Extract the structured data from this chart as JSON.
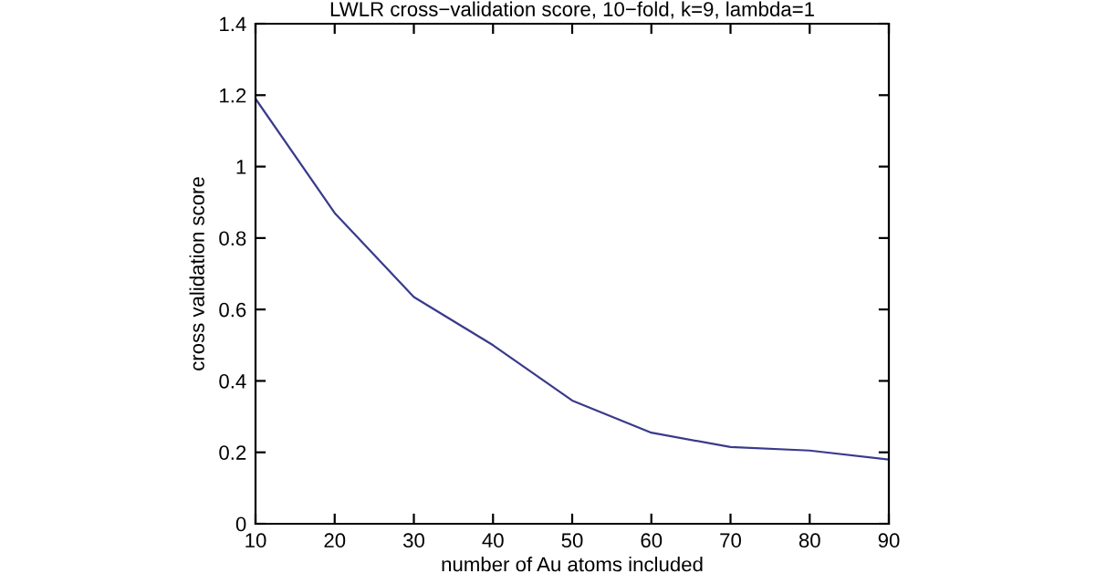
{
  "chart_data": {
    "type": "line",
    "title": "LWLR cross−validation score, 10−fold, k=9, lambda=1",
    "xlabel": "number of Au atoms included",
    "ylabel": "cross validation score",
    "x": [
      10,
      20,
      30,
      40,
      50,
      60,
      70,
      80,
      90
    ],
    "series": [
      {
        "color": "#3a3a8c",
        "values": [
          1.19,
          0.87,
          0.635,
          0.5,
          0.345,
          0.255,
          0.215,
          0.205,
          0.18
        ]
      }
    ],
    "xlim": [
      10,
      90
    ],
    "xticks": [
      10,
      20,
      30,
      40,
      50,
      60,
      70,
      80,
      90
    ],
    "ylim": [
      0,
      1.4
    ],
    "yticks": [
      0,
      0.2,
      0.4,
      0.6,
      0.8,
      {
        "value": 1,
        "label": "1"
      },
      1.2,
      1.4
    ],
    "grid": false,
    "marker": "none",
    "line_style": "solid"
  }
}
